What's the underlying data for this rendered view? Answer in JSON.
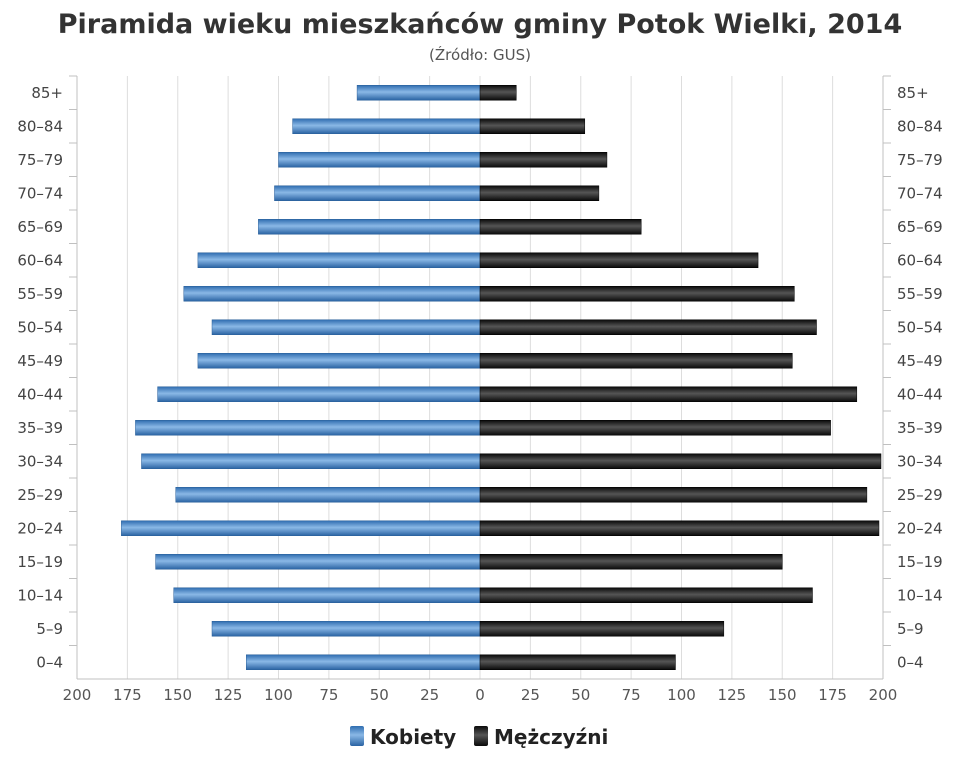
{
  "chart_data": {
    "type": "bar",
    "orientation": "horizontal",
    "layout": "population-pyramid",
    "title": "Piramida wieku mieszkańców gminy Potok Wielki, 2014",
    "subtitle": "(Źródło: GUS)",
    "categories": [
      "0–4",
      "5–9",
      "10–14",
      "15–19",
      "20–24",
      "25–29",
      "30–34",
      "35–39",
      "40–44",
      "45–49",
      "50–54",
      "55–59",
      "60–64",
      "65–69",
      "70–74",
      "75–79",
      "80–84",
      "85+"
    ],
    "series": [
      {
        "name": "Kobiety",
        "color": "#3f7fc4",
        "values": [
          116,
          133,
          152,
          161,
          178,
          151,
          168,
          171,
          160,
          140,
          133,
          147,
          140,
          110,
          102,
          100,
          93,
          61
        ]
      },
      {
        "name": "Mężczyźni",
        "color": "#1c1c1c",
        "values": [
          97,
          121,
          165,
          150,
          198,
          192,
          199,
          174,
          187,
          155,
          167,
          156,
          138,
          80,
          59,
          63,
          52,
          18
        ]
      }
    ],
    "xlim": [
      0,
      200
    ],
    "x_tick_labels": [
      "200",
      "175",
      "150",
      "125",
      "100",
      "75",
      "50",
      "25",
      "0",
      "25",
      "50",
      "75",
      "100",
      "125",
      "150",
      "175",
      "200"
    ],
    "grid": true,
    "legend_position": "bottom-center"
  }
}
